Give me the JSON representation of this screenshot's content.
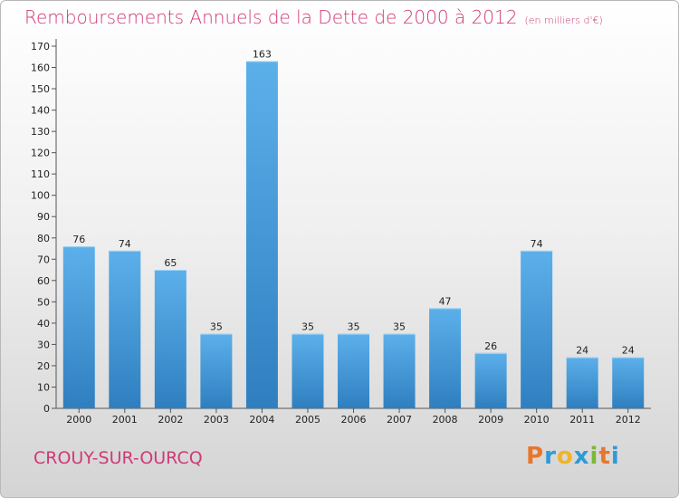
{
  "title": "Remboursements Annuels de la Dette de 2000 à 2012",
  "unit": "(en milliers d'€)",
  "commune": "CROUY-SUR-OURCQ",
  "logo": {
    "letters": [
      "P",
      "r",
      "o",
      "x",
      "i",
      "t",
      "i"
    ],
    "colors": [
      "#e8762b",
      "#2e9bd6",
      "#f0b428",
      "#2e9bd6",
      "#7ab83a",
      "#e8762b",
      "#2e9bd6"
    ]
  },
  "colors": {
    "title": "#cf3a78",
    "bar_top": "#5cb0ea",
    "bar_bottom": "#2f7fc0"
  },
  "chart_data": {
    "type": "bar",
    "categories": [
      "2000",
      "2001",
      "2002",
      "2003",
      "2004",
      "2005",
      "2006",
      "2007",
      "2008",
      "2009",
      "2010",
      "2011",
      "2012"
    ],
    "values": [
      76,
      74,
      65,
      35,
      163,
      35,
      35,
      35,
      47,
      26,
      74,
      24,
      24
    ],
    "data_labels": [
      "76",
      "74",
      "65",
      "35",
      "163",
      "35",
      "35",
      "35",
      "47",
      "26",
      "74",
      "24",
      "24"
    ],
    "ylim": [
      0,
      170
    ],
    "yticks": [
      0,
      10,
      20,
      30,
      40,
      50,
      60,
      70,
      80,
      90,
      100,
      110,
      120,
      130,
      140,
      150,
      160,
      170
    ],
    "grid": false,
    "legend": "none"
  }
}
